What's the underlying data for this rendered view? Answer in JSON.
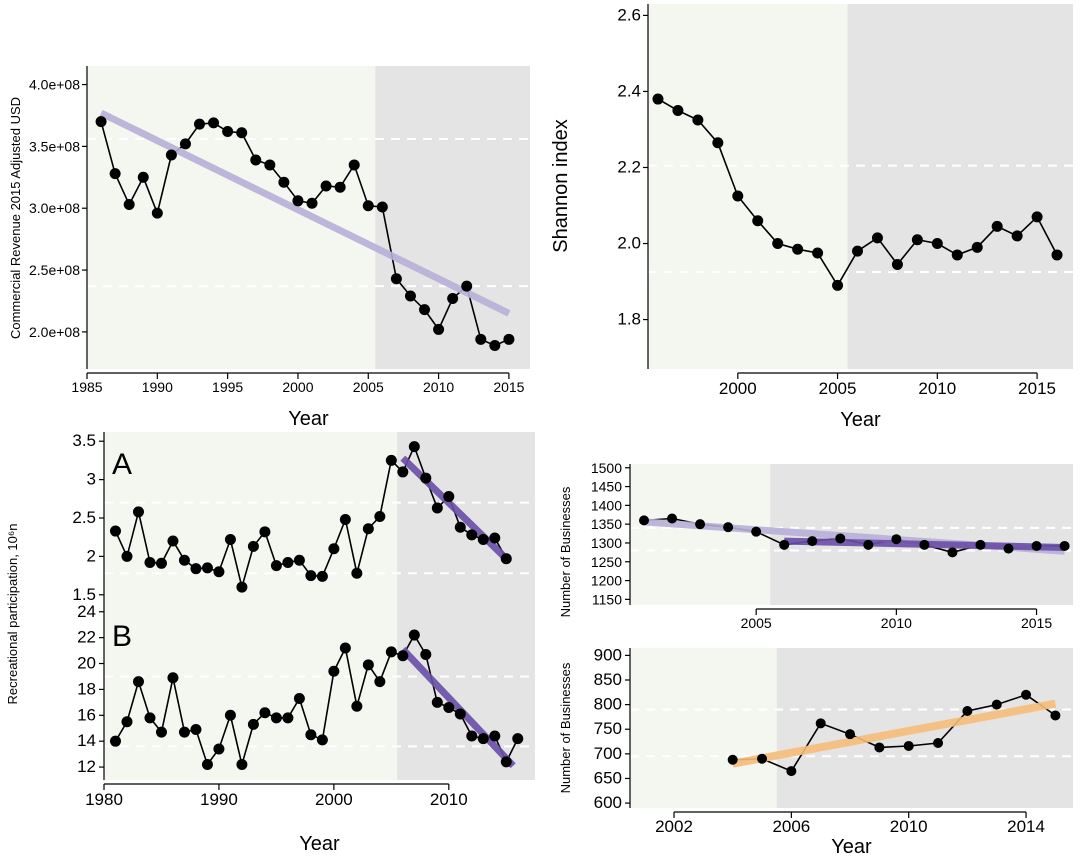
{
  "colors": {
    "pre_bg": "#f4f7ef",
    "post_bg": "#e4e4e4",
    "line": "#000000",
    "point": "#000000",
    "ref_line": "#ffffff",
    "trend_light": "#b8b0d8",
    "trend_dark": "#6b4ea8",
    "trend_orange": "#f6bd7a"
  },
  "chart_data": [
    {
      "id": "commercial-revenue",
      "type": "line",
      "title": "",
      "xlabel": "Year",
      "ylabel": "Commercial Revenue 2015 Adjusted USD",
      "xlim": [
        1985,
        2016.5
      ],
      "ylim": [
        170000000,
        415000000
      ],
      "split_year": 2005.5,
      "x_ticks": [
        1985,
        1990,
        1995,
        2000,
        2005,
        2010,
        2015
      ],
      "x_tick_labels": [
        "1985",
        "1990",
        "1995",
        "2000",
        "2005",
        "2010",
        "2015"
      ],
      "y_ticks": [
        200000000,
        250000000,
        300000000,
        350000000,
        400000000
      ],
      "y_tick_labels": [
        "2.0e+08",
        "2.5e+08",
        "3.0e+08",
        "3.5e+08",
        "4.0e+08"
      ],
      "ref_lines": [
        356000000,
        237000000
      ],
      "x": [
        1986,
        1987,
        1988,
        1989,
        1990,
        1991,
        1992,
        1993,
        1994,
        1995,
        1996,
        1997,
        1998,
        1999,
        2000,
        2001,
        2002,
        2003,
        2004,
        2005,
        2006,
        2007,
        2008,
        2009,
        2010,
        2011,
        2012,
        2013,
        2014,
        2015
      ],
      "values": [
        370000000,
        328000000,
        303000000,
        325000000,
        296000000,
        343000000,
        352000000,
        368000000,
        369000000,
        362000000,
        361000000,
        339000000,
        335000000,
        321000000,
        306000000,
        304000000,
        318000000,
        317000000,
        335000000,
        302000000,
        301000000,
        243000000,
        229000000,
        218000000,
        202000000,
        227000000,
        237000000,
        194000000,
        189000000,
        194000000
      ],
      "trends": [
        {
          "style": "light",
          "x": [
            1986,
            2015
          ],
          "y": [
            377000000,
            215000000
          ]
        }
      ]
    },
    {
      "id": "shannon-index",
      "type": "line",
      "title": "",
      "xlabel": "Year",
      "ylabel": "Shannon index",
      "xlim": [
        1995.5,
        2016.8
      ],
      "ylim": [
        1.67,
        2.63
      ],
      "split_year": 2005.5,
      "x_ticks": [
        2000,
        2005,
        2010,
        2015
      ],
      "x_tick_labels": [
        "2000",
        "2005",
        "2010",
        "2015"
      ],
      "y_ticks": [
        1.8,
        2.0,
        2.2,
        2.4,
        2.6
      ],
      "y_tick_labels": [
        "1.8",
        "2.0",
        "2.2",
        "2.4",
        "2.6"
      ],
      "ref_lines": [
        2.205,
        1.925
      ],
      "x": [
        1996,
        1997,
        1998,
        1999,
        2000,
        2001,
        2002,
        2003,
        2004,
        2005,
        2006,
        2007,
        2008,
        2009,
        2010,
        2011,
        2012,
        2013,
        2014,
        2015,
        2016
      ],
      "values": [
        2.38,
        2.35,
        2.325,
        2.265,
        2.125,
        2.06,
        2.0,
        1.985,
        1.975,
        1.89,
        1.98,
        2.015,
        1.945,
        2.01,
        2.0,
        1.97,
        1.99,
        2.045,
        2.02,
        2.07,
        1.97
      ],
      "trends": []
    },
    {
      "id": "recreational-participation-a",
      "type": "line",
      "panel_letter": "A",
      "xlabel": "",
      "ylabel": "Recreational participation, 10⁶n",
      "xlim": [
        1980,
        2017.5
      ],
      "ylim": [
        1.38,
        3.62
      ],
      "split_year": 2005.5,
      "x_ticks": [],
      "x_tick_labels": [],
      "y_ticks": [
        1.5,
        2,
        2.5,
        3,
        3.5
      ],
      "y_tick_labels": [
        "1.5",
        "2",
        "2.5",
        "3",
        "3.5"
      ],
      "ref_lines": [
        2.7,
        1.78
      ],
      "x": [
        1981,
        1982,
        1983,
        1984,
        1985,
        1986,
        1987,
        1988,
        1989,
        1990,
        1991,
        1992,
        1993,
        1994,
        1995,
        1996,
        1997,
        1998,
        1999,
        2000,
        2001,
        2002,
        2003,
        2004,
        2005,
        2006,
        2007,
        2008,
        2009,
        2010,
        2011,
        2012,
        2013,
        2014,
        2015
      ],
      "values": [
        2.33,
        2.0,
        2.58,
        1.92,
        1.91,
        2.2,
        1.95,
        1.84,
        1.85,
        1.8,
        2.22,
        1.6,
        2.13,
        2.32,
        1.88,
        1.92,
        1.95,
        1.75,
        1.74,
        2.1,
        2.48,
        1.78,
        2.36,
        2.52,
        3.25,
        3.1,
        3.43,
        3.02,
        2.63,
        2.78,
        2.38,
        2.28,
        2.22,
        2.24,
        1.97
      ],
      "trends": [
        {
          "style": "dark",
          "x": [
            2006,
            2015
          ],
          "y": [
            3.28,
            1.97
          ]
        }
      ]
    },
    {
      "id": "recreational-participation-b",
      "type": "line",
      "panel_letter": "B",
      "xlabel": "Year",
      "ylabel": "",
      "xlim": [
        1980,
        2017.5
      ],
      "ylim": [
        11.0,
        24.6
      ],
      "split_year": 2005.5,
      "x_ticks": [
        1980,
        1990,
        2000,
        2010
      ],
      "x_tick_labels": [
        "1980",
        "1990",
        "2000",
        "2010"
      ],
      "y_ticks": [
        12,
        14,
        16,
        18,
        20,
        22,
        24
      ],
      "y_tick_labels": [
        "12",
        "14",
        "16",
        "18",
        "20",
        "22",
        "24"
      ],
      "ref_lines": [
        19.0,
        13.6
      ],
      "x": [
        1981,
        1982,
        1983,
        1984,
        1985,
        1986,
        1987,
        1988,
        1989,
        1990,
        1991,
        1992,
        1993,
        1994,
        1995,
        1996,
        1997,
        1998,
        1999,
        2000,
        2001,
        2002,
        2003,
        2004,
        2005,
        2006,
        2007,
        2008,
        2009,
        2010,
        2011,
        2012,
        2013,
        2014,
        2015,
        2016
      ],
      "values": [
        14.0,
        15.5,
        18.6,
        15.8,
        14.7,
        18.9,
        14.7,
        14.9,
        12.2,
        13.4,
        16.0,
        12.2,
        15.3,
        16.2,
        15.8,
        15.8,
        17.3,
        14.5,
        14.1,
        19.4,
        21.2,
        16.7,
        19.9,
        18.6,
        20.9,
        20.6,
        22.2,
        20.7,
        17.0,
        16.6,
        16.1,
        14.4,
        14.2,
        14.4,
        12.4,
        14.2
      ],
      "trends": [
        {
          "style": "dark",
          "x": [
            2006,
            2015.6
          ],
          "y": [
            21.1,
            12.1
          ]
        }
      ]
    },
    {
      "id": "number-of-businesses-top",
      "type": "line",
      "xlabel": "",
      "ylabel": "Number of Businesses",
      "xlim": [
        2000.5,
        2016.3
      ],
      "ylim": [
        1135,
        1510
      ],
      "split_year": 2005.5,
      "x_ticks": [
        2005,
        2010,
        2015
      ],
      "x_tick_labels": [
        "2005",
        "2010",
        "2015"
      ],
      "y_ticks": [
        1150,
        1200,
        1250,
        1300,
        1350,
        1400,
        1450,
        1500
      ],
      "y_tick_labels": [
        "1150",
        "1200",
        "1250",
        "1300",
        "1350",
        "1400",
        "1450",
        "1500"
      ],
      "ref_lines": [
        1340,
        1280
      ],
      "x": [
        2001,
        2002,
        2003,
        2004,
        2005,
        2006,
        2007,
        2008,
        2009,
        2010,
        2011,
        2012,
        2013,
        2014,
        2015,
        2016
      ],
      "values": [
        1360,
        1365,
        1350,
        1342,
        1330,
        1295,
        1305,
        1312,
        1295,
        1310,
        1295,
        1275,
        1295,
        1285,
        1292,
        1292
      ],
      "trends": [
        {
          "style": "light",
          "x": [
            2001,
            2016
          ],
          "y": [
            1356,
            1278
          ]
        },
        {
          "style": "dark",
          "x": [
            2006,
            2016
          ],
          "y": [
            1305,
            1288
          ]
        }
      ]
    },
    {
      "id": "number-of-businesses-bottom",
      "type": "line",
      "xlabel": "Year",
      "ylabel": "Number of Businesses",
      "xlim": [
        2000.5,
        2015.6
      ],
      "ylim": [
        590,
        915
      ],
      "split_year": 2005.5,
      "x_ticks": [
        2002,
        2006,
        2010,
        2014
      ],
      "x_tick_labels": [
        "2002",
        "2006",
        "2010",
        "2014"
      ],
      "y_ticks": [
        600,
        650,
        700,
        750,
        800,
        850,
        900
      ],
      "y_tick_labels": [
        "600",
        "650",
        "700",
        "750",
        "800",
        "850",
        "900"
      ],
      "ref_lines": [
        790,
        695
      ],
      "x": [
        2004,
        2005,
        2006,
        2007,
        2008,
        2009,
        2010,
        2011,
        2012,
        2013,
        2014,
        2015
      ],
      "values": [
        688,
        690,
        665,
        762,
        740,
        713,
        716,
        722,
        787,
        800,
        820,
        778
      ],
      "trends": [
        {
          "style": "orange",
          "x": [
            2004,
            2015
          ],
          "y": [
            680,
            802
          ]
        }
      ]
    }
  ]
}
